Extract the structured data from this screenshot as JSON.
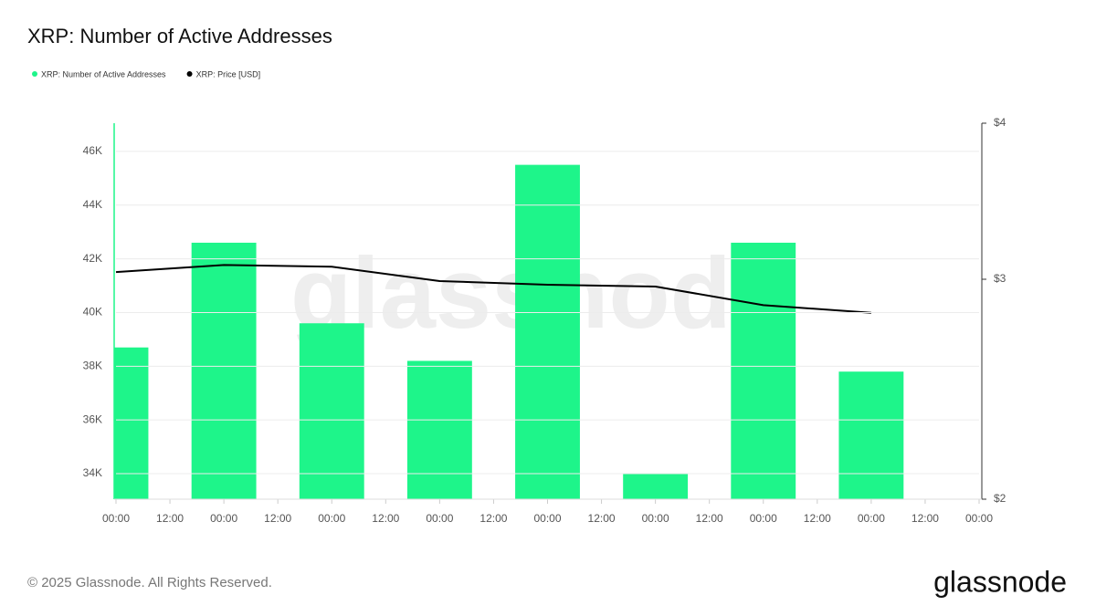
{
  "chart_data": {
    "type": "bar",
    "title": "XRP: Number of Active Addresses",
    "x": [
      0,
      24,
      48,
      72,
      96,
      120,
      144,
      168
    ],
    "xlim": [
      0,
      192
    ],
    "xticks": [
      {
        "value": 0,
        "label": "00:00"
      },
      {
        "value": 12,
        "label": "12:00"
      },
      {
        "value": 24,
        "label": "00:00"
      },
      {
        "value": 36,
        "label": "12:00"
      },
      {
        "value": 48,
        "label": "00:00"
      },
      {
        "value": 60,
        "label": "12:00"
      },
      {
        "value": 72,
        "label": "00:00"
      },
      {
        "value": 84,
        "label": "12:00"
      },
      {
        "value": 96,
        "label": "00:00"
      },
      {
        "value": 108,
        "label": "12:00"
      },
      {
        "value": 120,
        "label": "00:00"
      },
      {
        "value": 132,
        "label": "12:00"
      },
      {
        "value": 144,
        "label": "00:00"
      },
      {
        "value": 156,
        "label": "12:00"
      },
      {
        "value": 168,
        "label": "00:00"
      },
      {
        "value": 180,
        "label": "12:00"
      },
      {
        "value": 192,
        "label": "00:00"
      }
    ],
    "ylim": [
      33050,
      47050
    ],
    "yticks": [
      {
        "value": 34000,
        "label": "34K"
      },
      {
        "value": 36000,
        "label": "36K"
      },
      {
        "value": 38000,
        "label": "38K"
      },
      {
        "value": 40000,
        "label": "40K"
      },
      {
        "value": 42000,
        "label": "42K"
      },
      {
        "value": 44000,
        "label": "44K"
      },
      {
        "value": 46000,
        "label": "46K"
      }
    ],
    "y2lim": [
      2,
      4
    ],
    "y2ticks": [
      {
        "value": 2,
        "label": "$2"
      },
      {
        "value": 3,
        "label": "$3"
      },
      {
        "value": 4,
        "label": "$4"
      }
    ],
    "y2_log": true,
    "grid": true,
    "series": [
      {
        "name": "XRP: Number of Active Addresses",
        "color": "#1ef58a",
        "type": "bar",
        "values": [
          38700,
          42600,
          39600,
          38200,
          45500,
          34000,
          42600,
          37800
        ]
      },
      {
        "name": "XRP: Price [USD]",
        "color": "#000000",
        "type": "line",
        "axis": "y2",
        "values": [
          3.04,
          3.08,
          3.07,
          2.99,
          2.97,
          2.96,
          2.86,
          2.82
        ]
      }
    ]
  },
  "watermark": "glassnode",
  "footer": "© 2025 Glassnode. All Rights Reserved.",
  "logo": "glassnode"
}
